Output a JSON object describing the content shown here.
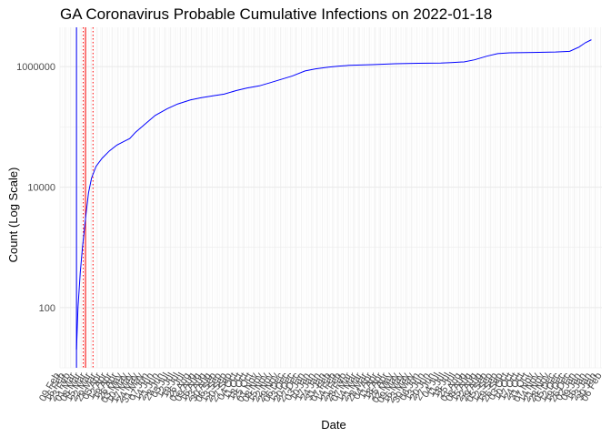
{
  "chart_data": {
    "type": "line",
    "title": "GA Coronavirus Probable Cumulative Infections on 2022-01-18",
    "xlabel": "Date",
    "ylabel": "Count (Log Scale)",
    "y_scale": "log10",
    "ylim": [
      10,
      4500000
    ],
    "y_ticks": [
      100,
      10000,
      1000000
    ],
    "y_tick_labels": [
      "100",
      "10000",
      "1000000"
    ],
    "grid": true,
    "x_range": [
      "2020-02-09",
      "2022-02-01"
    ],
    "x_tick_labels": [
      "09 Feb",
      "16 Feb",
      "23 Feb",
      "01 Mar",
      "08 Mar",
      "15 Mar",
      "22 Mar",
      "29 Mar",
      "05 Apr",
      "12 Apr",
      "19 Apr",
      "26 Apr",
      "03 May",
      "10 May",
      "17 May",
      "24 May",
      "31 May",
      "07 Jun",
      "14 Jun",
      "21 Jun",
      "28 Jun",
      "05 Jul",
      "12 Jul",
      "19 Jul",
      "26 Jul",
      "02 Aug",
      "09 Aug",
      "16 Aug",
      "23 Aug",
      "30 Aug",
      "06 Sep",
      "13 Sep",
      "20 Sep",
      "27 Sep",
      "04 Oct",
      "11 Oct",
      "18 Oct",
      "25 Oct",
      "01 Nov",
      "08 Nov",
      "15 Nov",
      "22 Nov",
      "29 Nov",
      "06 Dec",
      "13 Dec",
      "20 Dec",
      "27 Dec",
      "03 Jan",
      "10 Jan",
      "17 Jan",
      "24 Jan",
      "31 Jan",
      "07 Feb",
      "14 Feb",
      "21 Feb",
      "28 Feb",
      "07 Mar",
      "14 Mar",
      "21 Mar",
      "28 Mar",
      "04 Apr",
      "11 Apr",
      "18 Apr",
      "25 Apr",
      "02 May",
      "09 May",
      "16 May",
      "23 May",
      "30 May",
      "06 Jun",
      "13 Jun",
      "20 Jun",
      "27 Jun",
      "04 Jul",
      "11 Jul",
      "18 Jul",
      "25 Jul",
      "01 Aug",
      "08 Aug",
      "15 Aug",
      "22 Aug",
      "29 Aug",
      "05 Sep",
      "12 Sep",
      "19 Sep",
      "26 Sep",
      "03 Oct",
      "10 Oct",
      "17 Oct",
      "24 Oct",
      "31 Oct",
      "07 Nov",
      "14 Nov",
      "21 Nov",
      "28 Nov",
      "05 Dec",
      "12 Dec",
      "19 Dec",
      "26 Dec",
      "02 Jan",
      "09 Jan",
      "16 Jan",
      "23 Jan",
      "30 Jan",
      "06 Feb"
    ],
    "series": [
      {
        "color": "#0000ff",
        "points": [
          [
            "2020-03-02",
            20
          ],
          [
            "2020-03-04",
            100
          ],
          [
            "2020-03-07",
            380
          ],
          [
            "2020-03-10",
            1000
          ],
          [
            "2020-03-14",
            3000
          ],
          [
            "2020-03-18",
            8000
          ],
          [
            "2020-03-22",
            14000
          ],
          [
            "2020-03-28",
            22000
          ],
          [
            "2020-04-05",
            30000
          ],
          [
            "2020-04-15",
            40000
          ],
          [
            "2020-04-25",
            50000
          ],
          [
            "2020-05-05",
            58000
          ],
          [
            "2020-05-12",
            64000
          ],
          [
            "2020-05-20",
            82000
          ],
          [
            "2020-06-01",
            110000
          ],
          [
            "2020-06-15",
            155000
          ],
          [
            "2020-07-01",
            200000
          ],
          [
            "2020-07-15",
            240000
          ],
          [
            "2020-08-01",
            280000
          ],
          [
            "2020-08-15",
            305000
          ],
          [
            "2020-09-01",
            330000
          ],
          [
            "2020-09-15",
            350000
          ],
          [
            "2020-10-01",
            400000
          ],
          [
            "2020-10-15",
            440000
          ],
          [
            "2020-11-01",
            480000
          ],
          [
            "2020-11-15",
            540000
          ],
          [
            "2020-12-01",
            620000
          ],
          [
            "2020-12-15",
            700000
          ],
          [
            "2021-01-01",
            850000
          ],
          [
            "2021-01-15",
            920000
          ],
          [
            "2021-02-01",
            980000
          ],
          [
            "2021-02-15",
            1020000
          ],
          [
            "2021-03-01",
            1050000
          ],
          [
            "2021-04-01",
            1080000
          ],
          [
            "2021-05-01",
            1120000
          ],
          [
            "2021-06-01",
            1140000
          ],
          [
            "2021-07-01",
            1150000
          ],
          [
            "2021-07-15",
            1170000
          ],
          [
            "2021-08-01",
            1200000
          ],
          [
            "2021-08-15",
            1300000
          ],
          [
            "2021-09-01",
            1500000
          ],
          [
            "2021-09-15",
            1650000
          ],
          [
            "2021-10-01",
            1700000
          ],
          [
            "2021-11-01",
            1720000
          ],
          [
            "2021-12-01",
            1750000
          ],
          [
            "2021-12-20",
            1800000
          ],
          [
            "2022-01-01",
            2100000
          ],
          [
            "2022-01-10",
            2500000
          ],
          [
            "2022-01-18",
            2800000
          ]
        ]
      }
    ],
    "vertical_lines": [
      {
        "date": "2020-03-02",
        "color": "#0000ff",
        "style": "solid"
      },
      {
        "date": "2020-03-14",
        "color": "#ff0000",
        "style": "solid"
      },
      {
        "date": "2020-03-11",
        "color": "#ff0000",
        "style": "dotted"
      },
      {
        "date": "2020-03-24",
        "color": "#ff0000",
        "style": "dotted"
      }
    ]
  }
}
